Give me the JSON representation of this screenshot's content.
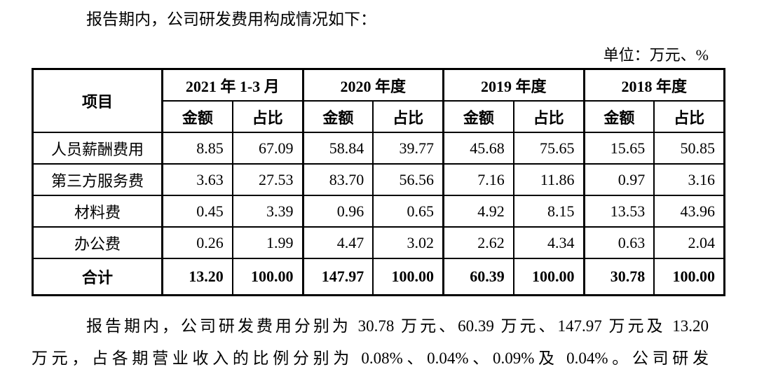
{
  "document": {
    "intro_text": "报告期内，公司研发费用构成情况如下：",
    "unit_label": "单位：万元、%",
    "footer_line1": "报告期内，公司研发费用分别为 30.78 万元、60.39 万元、147.97 万元及 13.20",
    "footer_line2": "万元，占各期营业收入的比例分别为 0.08%、0.04%、0.09%及 0.04%。公司研发"
  },
  "table": {
    "item_header": "项目",
    "amount_header": "金额",
    "ratio_header": "占比",
    "periods": [
      "2021 年 1-3 月",
      "2020 年度",
      "2019 年度",
      "2018 年度"
    ],
    "rows": [
      {
        "item": "人员薪酬费用",
        "v": [
          "8.85",
          "67.09",
          "58.84",
          "39.77",
          "45.68",
          "75.65",
          "15.65",
          "50.85"
        ]
      },
      {
        "item": "第三方服务费",
        "v": [
          "3.63",
          "27.53",
          "83.70",
          "56.56",
          "7.16",
          "11.86",
          "0.97",
          "3.16"
        ]
      },
      {
        "item": "材料费",
        "v": [
          "0.45",
          "3.39",
          "0.96",
          "0.65",
          "4.92",
          "8.15",
          "13.53",
          "43.96"
        ]
      },
      {
        "item": "办公费",
        "v": [
          "0.26",
          "1.99",
          "4.47",
          "3.02",
          "2.62",
          "4.34",
          "0.63",
          "2.04"
        ]
      }
    ],
    "total": {
      "item": "合计",
      "v": [
        "13.20",
        "100.00",
        "147.97",
        "100.00",
        "60.39",
        "100.00",
        "30.78",
        "100.00"
      ]
    }
  }
}
